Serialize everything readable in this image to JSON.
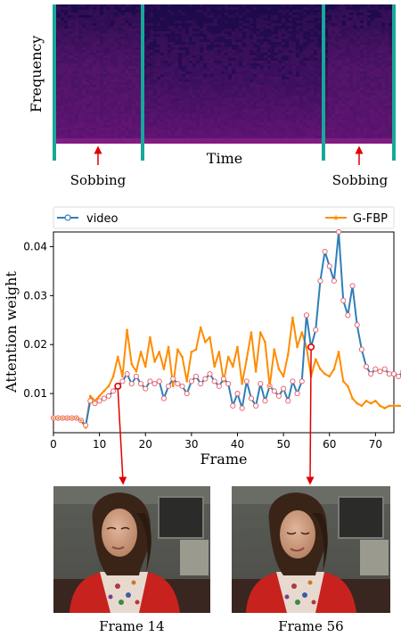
{
  "spectrogram": {
    "ylabel": "Frequency",
    "xlabel": "Time",
    "event_labels": [
      "Sobbing",
      "Sobbing"
    ]
  },
  "chart_data": {
    "type": "line",
    "xlabel": "Frame",
    "ylabel": "Attention weight",
    "xlim": [
      0,
      74
    ],
    "ylim": [
      0.002,
      0.043
    ],
    "xticks": [
      "0",
      "10",
      "20",
      "30",
      "40",
      "50",
      "60",
      "70"
    ],
    "yticks": [
      "0.01",
      "0.02",
      "0.03",
      "0.04"
    ],
    "legend": "top",
    "grid": false,
    "series": [
      {
        "name": "video",
        "color": "#2f7fb8",
        "marker": "circle",
        "values": [
          0.005,
          0.005,
          0.005,
          0.005,
          0.005,
          0.005,
          0.0045,
          0.0035,
          0.0085,
          0.008,
          0.0085,
          0.009,
          0.0095,
          0.0105,
          0.0115,
          0.0125,
          0.014,
          0.012,
          0.0135,
          0.012,
          0.011,
          0.0125,
          0.012,
          0.0125,
          0.009,
          0.0115,
          0.013,
          0.012,
          0.0115,
          0.01,
          0.0125,
          0.0135,
          0.012,
          0.013,
          0.014,
          0.0125,
          0.0115,
          0.013,
          0.012,
          0.0075,
          0.01,
          0.007,
          0.0125,
          0.009,
          0.0075,
          0.012,
          0.0085,
          0.0115,
          0.0105,
          0.0095,
          0.011,
          0.0085,
          0.0125,
          0.01,
          0.0125,
          0.026,
          0.0195,
          0.023,
          0.033,
          0.039,
          0.036,
          0.033,
          0.043,
          0.029,
          0.026,
          0.032,
          0.024,
          0.019,
          0.0155,
          0.014,
          0.015,
          0.0145,
          0.015,
          0.014,
          0.014,
          0.0135,
          0.0145
        ]
      },
      {
        "name": "G-FBP",
        "color": "#ff8c00",
        "marker": "star",
        "values": [
          0.005,
          0.005,
          0.005,
          0.005,
          0.005,
          0.005,
          0.0045,
          0.003,
          0.0095,
          0.0085,
          0.0095,
          0.0105,
          0.0115,
          0.0135,
          0.0175,
          0.0135,
          0.023,
          0.016,
          0.0145,
          0.0185,
          0.0155,
          0.0215,
          0.0165,
          0.0185,
          0.015,
          0.0195,
          0.0115,
          0.019,
          0.0175,
          0.0125,
          0.0185,
          0.019,
          0.0235,
          0.0205,
          0.0215,
          0.0155,
          0.0185,
          0.0125,
          0.0175,
          0.0155,
          0.0195,
          0.012,
          0.017,
          0.0225,
          0.0145,
          0.0225,
          0.0205,
          0.0115,
          0.019,
          0.015,
          0.0135,
          0.018,
          0.0255,
          0.0195,
          0.0225,
          0.0195,
          0.0135,
          0.017,
          0.015,
          0.014,
          0.0135,
          0.015,
          0.0185,
          0.0125,
          0.0115,
          0.009,
          0.008,
          0.0075,
          0.0085,
          0.008,
          0.0085,
          0.0075,
          0.007,
          0.0075,
          0.0075,
          0.0075,
          0.0075,
          0.0075
        ]
      }
    ],
    "annotated_frames": [
      14,
      56
    ]
  },
  "frames": [
    {
      "label": "Frame 14",
      "frame": 14
    },
    {
      "label": "Frame 56",
      "frame": 56
    }
  ]
}
